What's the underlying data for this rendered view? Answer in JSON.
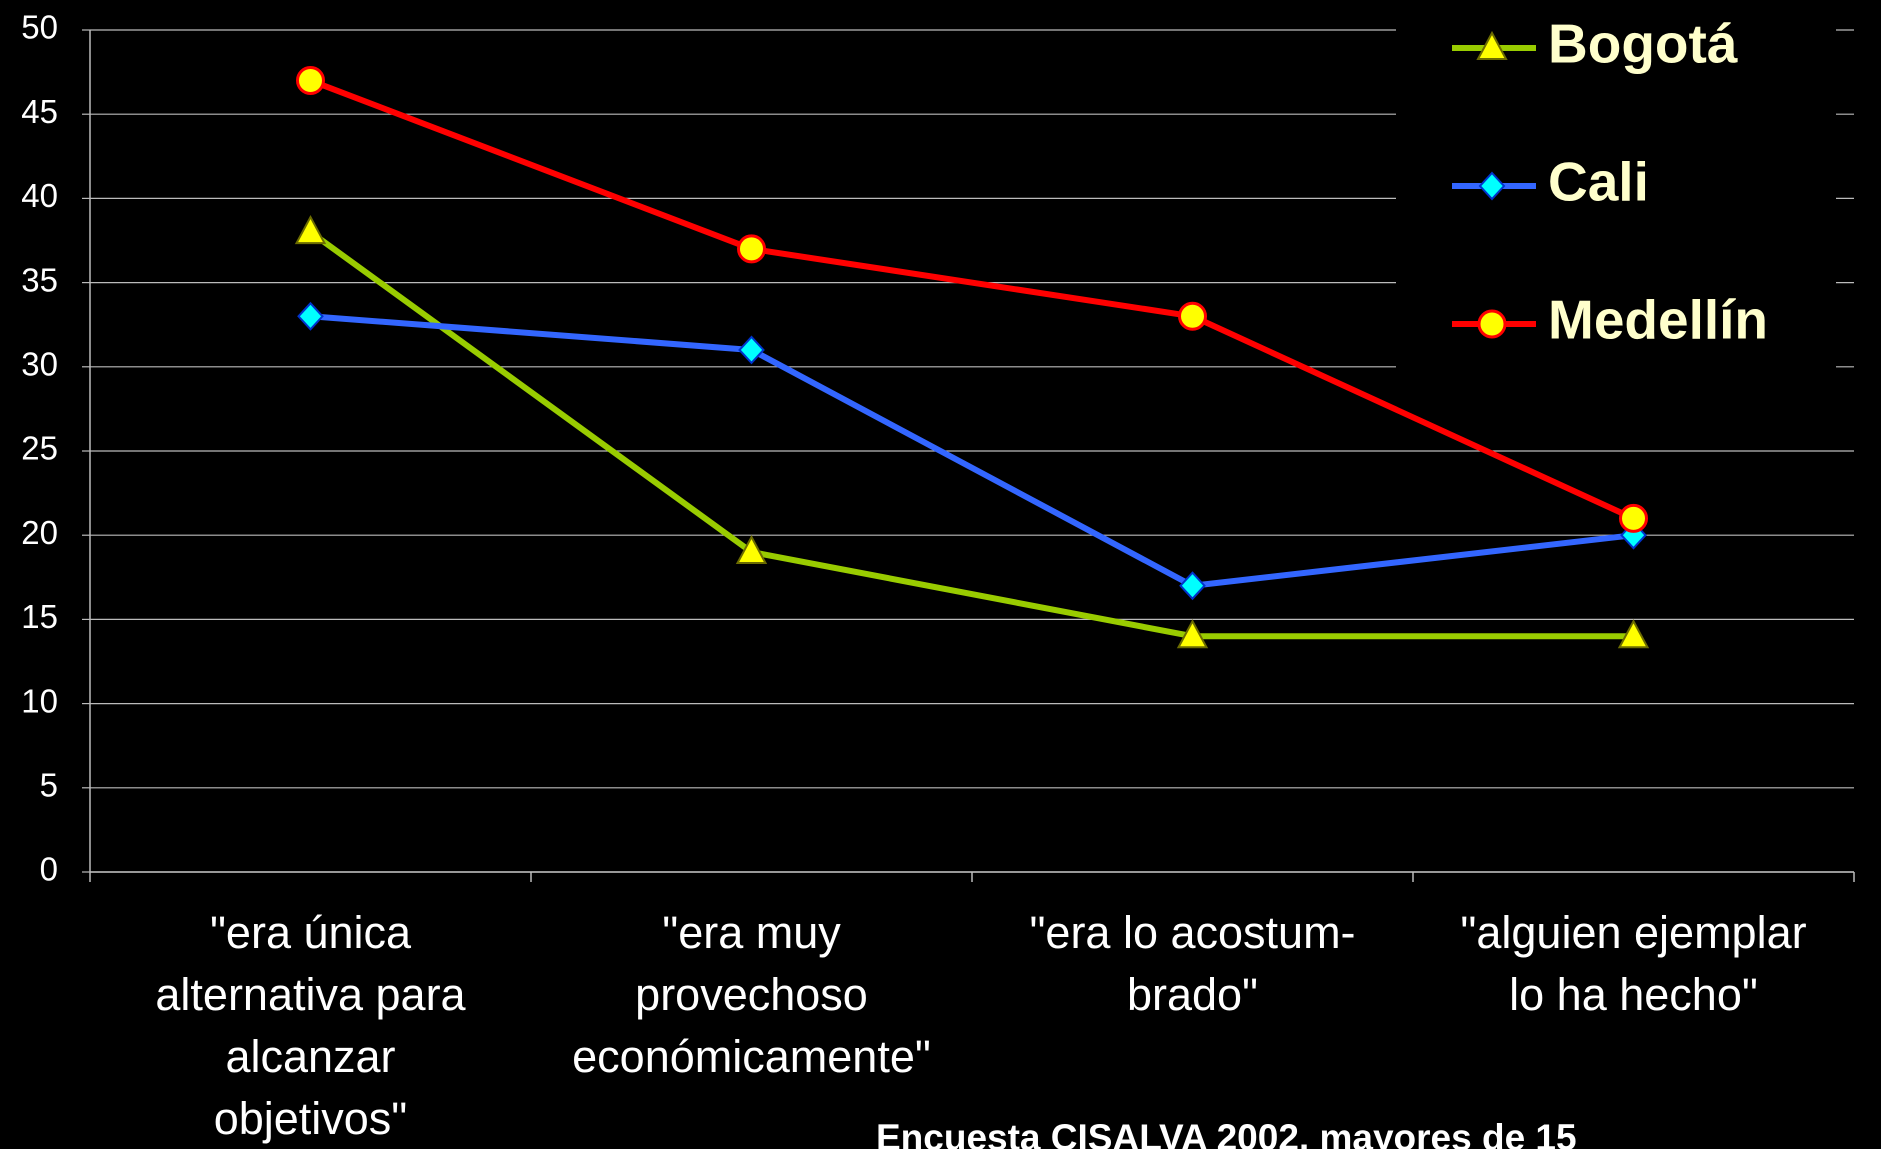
{
  "chart_data": {
    "type": "line",
    "categories": [
      "\"era única\nalternativa para\nalcanzar\nobjetivos\"",
      "\"era muy\nprovechoso\neconómicamente\"",
      "\"era lo acostum-\nbrado\"",
      "\"alguien ejemplar\nlo ha hecho\""
    ],
    "series": [
      {
        "name": "Bogotá",
        "color": "#99cc00",
        "marker": "triangle",
        "values": [
          38,
          19,
          14,
          14
        ]
      },
      {
        "name": "Cali",
        "color": "#3366ff",
        "marker": "diamond",
        "values": [
          33,
          31,
          17,
          20
        ]
      },
      {
        "name": "Medellín",
        "color": "#ff0000",
        "marker": "circle",
        "values": [
          47,
          37,
          33,
          21
        ]
      }
    ],
    "ylim": [
      0,
      50
    ],
    "yticks": [
      0,
      5,
      10,
      15,
      20,
      25,
      30,
      35,
      40,
      45,
      50
    ],
    "grid": true,
    "legend": "upper right",
    "note": "Encuesta CISALVA 2002, mayores de 15"
  }
}
